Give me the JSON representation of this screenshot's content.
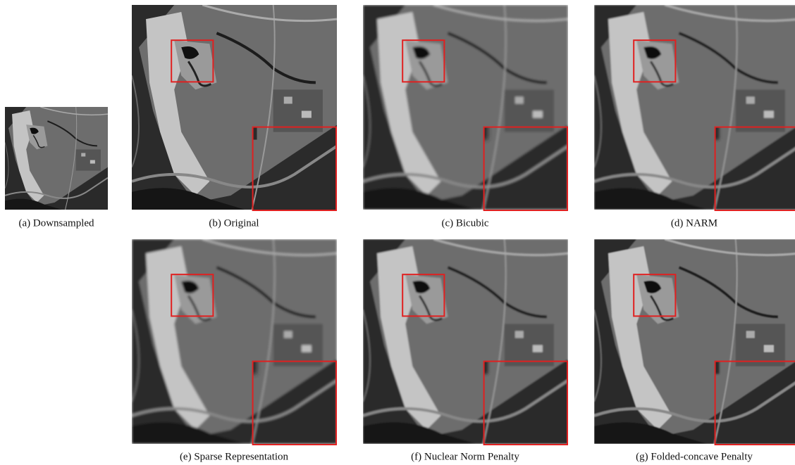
{
  "panels": [
    {
      "caption": "(a)  Downsampled"
    },
    {
      "caption": "(b)  Original"
    },
    {
      "caption": "(c)  Bicubic"
    },
    {
      "caption": "(d)  NARM"
    },
    {
      "caption": "(e)  Sparse Representation"
    },
    {
      "caption": "(f)  Nuclear Norm Penalty"
    },
    {
      "caption": "(g)  Folded-concave Penalty"
    }
  ]
}
